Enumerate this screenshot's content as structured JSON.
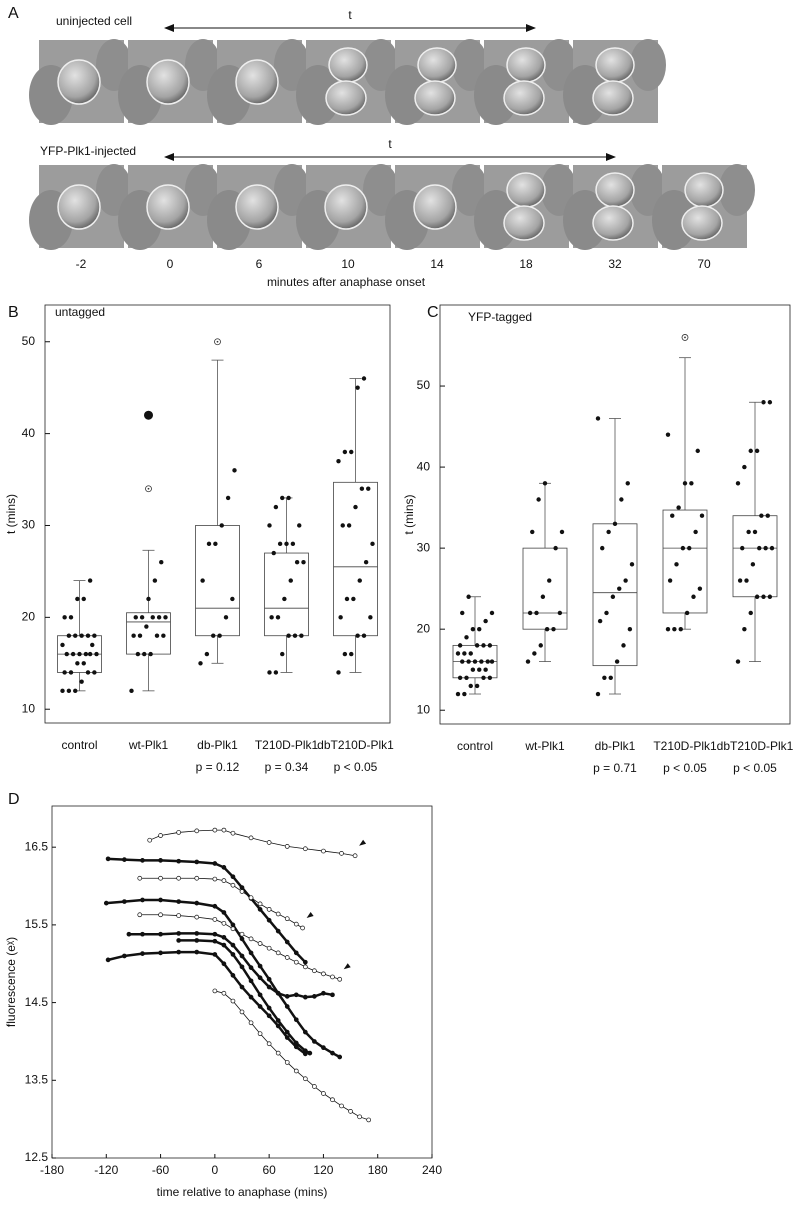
{
  "panel_a": {
    "label": "A",
    "rows": [
      {
        "label": "uninjected cell",
        "arrow_label": "t"
      },
      {
        "label": "YFP-Plk1-injected",
        "arrow_label": "t"
      }
    ],
    "time_labels": [
      -2,
      0,
      6,
      10,
      14,
      18,
      32,
      70
    ],
    "xlabel": "minutes after anaphase onset"
  },
  "chart_data": [
    {
      "type": "box",
      "panel_label": "B",
      "title": "untagged",
      "ylabel": "t (mins)",
      "categories": [
        "control",
        "wt-Plk1",
        "db-Plk1",
        "T210D-Plk1",
        "dbT210D-Plk1"
      ],
      "annotations": [
        null,
        null,
        "p = 0.12",
        "p = 0.34",
        "p < 0.05"
      ],
      "boxes": [
        {
          "whisker_low": 12,
          "q1": 14,
          "median": 16,
          "q3": 18,
          "whisker_high": 24,
          "outliers": [],
          "points": [
            12,
            12,
            12,
            13,
            14,
            14,
            14,
            14,
            15,
            15,
            16,
            16,
            16,
            16,
            16,
            16,
            17,
            17,
            18,
            18,
            18,
            18,
            18,
            20,
            20,
            22,
            22,
            24
          ]
        },
        {
          "whisker_low": 12,
          "q1": 16,
          "median": 19.5,
          "q3": 20.5,
          "whisker_high": 27.3,
          "outliers": [
            {
              "value": 42,
              "marker": "large-filled"
            },
            {
              "value": 34,
              "marker": "open"
            }
          ],
          "points": [
            12,
            16,
            16,
            16,
            18,
            18,
            18,
            18,
            19,
            20,
            20,
            20,
            20,
            20,
            22,
            24,
            26
          ]
        },
        {
          "whisker_low": 15,
          "q1": 18,
          "median": 21,
          "q3": 30,
          "whisker_high": 48,
          "outliers": [
            {
              "value": 50,
              "marker": "open"
            }
          ],
          "points": [
            15,
            16,
            18,
            18,
            20,
            22,
            24,
            28,
            28,
            30,
            33,
            36
          ]
        },
        {
          "whisker_low": 14,
          "q1": 18,
          "median": 21,
          "q3": 27,
          "whisker_high": 33,
          "outliers": [],
          "points": [
            14,
            14,
            16,
            18,
            18,
            18,
            20,
            20,
            22,
            24,
            26,
            26,
            27,
            28,
            28,
            28,
            30,
            30,
            32,
            33,
            33
          ]
        },
        {
          "whisker_low": 14,
          "q1": 18,
          "median": 25.5,
          "q3": 34.7,
          "whisker_high": 46,
          "outliers": [],
          "points": [
            14,
            16,
            16,
            18,
            18,
            20,
            20,
            22,
            22,
            24,
            26,
            28,
            30,
            30,
            32,
            34,
            34,
            37,
            38,
            38,
            45,
            46
          ]
        }
      ],
      "ylim": [
        8.5,
        54
      ],
      "yticks": [
        10,
        20,
        30,
        40,
        50
      ]
    },
    {
      "type": "box",
      "panel_label": "C",
      "title": "YFP-tagged",
      "ylabel": "t (mins)",
      "categories": [
        "control",
        "wt-Plk1",
        "db-Plk1",
        "T210D-Plk1",
        "dbT210D-Plk1"
      ],
      "annotations": [
        null,
        null,
        "p = 0.71",
        "p < 0.05",
        "p < 0.05"
      ],
      "boxes": [
        {
          "whisker_low": 12,
          "q1": 14,
          "median": 16,
          "q3": 18,
          "whisker_high": 24,
          "outliers": [],
          "points": [
            12,
            12,
            13,
            13,
            14,
            14,
            14,
            14,
            15,
            15,
            15,
            16,
            16,
            16,
            16,
            16,
            16,
            17,
            17,
            17,
            18,
            18,
            18,
            18,
            19,
            20,
            20,
            21,
            22,
            22,
            24
          ]
        },
        {
          "whisker_low": 16,
          "q1": 20,
          "median": 22,
          "q3": 30,
          "whisker_high": 38,
          "outliers": [],
          "points": [
            16,
            17,
            18,
            20,
            20,
            22,
            22,
            22,
            24,
            26,
            30,
            32,
            32,
            36,
            38
          ]
        },
        {
          "whisker_low": 12,
          "q1": 15.5,
          "median": 24.5,
          "q3": 33,
          "whisker_high": 46,
          "outliers": [],
          "points": [
            12,
            14,
            14,
            16,
            18,
            20,
            21,
            22,
            24,
            25,
            26,
            28,
            30,
            32,
            33,
            36,
            38,
            46
          ]
        },
        {
          "whisker_low": 20,
          "q1": 22,
          "median": 30,
          "q3": 34.7,
          "whisker_high": 53.5,
          "outliers": [
            {
              "value": 56,
              "marker": "open"
            }
          ],
          "points": [
            20,
            20,
            20,
            22,
            24,
            25,
            26,
            28,
            30,
            30,
            32,
            34,
            34,
            35,
            38,
            38,
            42,
            44
          ]
        },
        {
          "whisker_low": 16,
          "q1": 24,
          "median": 30,
          "q3": 34,
          "whisker_high": 48,
          "outliers": [],
          "points": [
            16,
            20,
            22,
            24,
            24,
            24,
            26,
            26,
            28,
            30,
            30,
            30,
            30,
            32,
            32,
            34,
            34,
            38,
            40,
            42,
            42,
            48,
            48
          ]
        }
      ],
      "ylim": [
        8.3,
        60
      ],
      "yticks": [
        10,
        20,
        30,
        40,
        50
      ]
    },
    {
      "type": "line",
      "panel_label": "D",
      "xlabel": "time relative to anaphase (mins)",
      "ylabel": "fluorescence (eᵡ)",
      "xlim": [
        -180,
        240
      ],
      "xticks": [
        -180,
        -120,
        -60,
        0,
        60,
        120,
        180,
        240
      ],
      "ylim": [
        12.5,
        17.03
      ],
      "yticks": [
        12.5,
        13.5,
        14.5,
        15.5,
        16.5
      ],
      "series": [
        {
          "marker": "open",
          "arrowhead": true,
          "x": [
            -72,
            -60,
            -40,
            -20,
            0,
            10,
            20,
            40,
            60,
            80,
            100,
            120,
            140,
            155
          ],
          "values": [
            16.59,
            16.65,
            16.69,
            16.71,
            16.72,
            16.72,
            16.68,
            16.62,
            16.56,
            16.51,
            16.48,
            16.45,
            16.42,
            16.39
          ]
        },
        {
          "marker": "filled",
          "x": [
            -118,
            -100,
            -80,
            -60,
            -40,
            -20,
            0,
            10,
            20,
            30,
            40,
            50,
            60,
            70,
            80,
            90,
            100
          ],
          "values": [
            16.35,
            16.34,
            16.33,
            16.33,
            16.32,
            16.31,
            16.29,
            16.24,
            16.12,
            15.98,
            15.84,
            15.7,
            15.56,
            15.42,
            15.28,
            15.14,
            15.02
          ]
        },
        {
          "marker": "open",
          "arrowhead": true,
          "x": [
            -83,
            -60,
            -40,
            -20,
            0,
            10,
            20,
            30,
            40,
            50,
            60,
            70,
            80,
            90,
            97
          ],
          "values": [
            16.1,
            16.1,
            16.1,
            16.1,
            16.09,
            16.07,
            16.01,
            15.93,
            15.85,
            15.77,
            15.7,
            15.64,
            15.58,
            15.51,
            15.46
          ]
        },
        {
          "marker": "filled",
          "x": [
            -120,
            -100,
            -80,
            -60,
            -40,
            -20,
            0,
            10,
            20,
            30,
            40,
            50,
            60,
            70,
            80,
            90,
            100,
            110,
            120,
            130,
            138
          ],
          "values": [
            15.78,
            15.8,
            15.82,
            15.82,
            15.8,
            15.78,
            15.74,
            15.66,
            15.5,
            15.32,
            15.14,
            14.97,
            14.8,
            14.62,
            14.45,
            14.28,
            14.12,
            14.0,
            13.92,
            13.85,
            13.8
          ]
        },
        {
          "marker": "open",
          "arrowhead": true,
          "x": [
            -83,
            -60,
            -40,
            -20,
            0,
            10,
            20,
            30,
            40,
            50,
            60,
            70,
            80,
            90,
            100,
            110,
            120,
            130,
            138
          ],
          "values": [
            15.63,
            15.63,
            15.62,
            15.6,
            15.57,
            15.52,
            15.45,
            15.38,
            15.32,
            15.26,
            15.2,
            15.14,
            15.08,
            15.02,
            14.96,
            14.91,
            14.87,
            14.83,
            14.8
          ]
        },
        {
          "marker": "filled",
          "x": [
            -95,
            -80,
            -60,
            -40,
            -20,
            0,
            10,
            20,
            30,
            40,
            50,
            60,
            70,
            80,
            90,
            100,
            110,
            120,
            130
          ],
          "values": [
            15.38,
            15.38,
            15.38,
            15.39,
            15.39,
            15.38,
            15.34,
            15.24,
            15.1,
            14.95,
            14.82,
            14.7,
            14.62,
            14.58,
            14.6,
            14.57,
            14.58,
            14.62,
            14.6
          ]
        },
        {
          "marker": "filled",
          "x": [
            -40,
            -20,
            0,
            10,
            20,
            30,
            40,
            50,
            60,
            70,
            80,
            90,
            100,
            105
          ],
          "values": [
            15.3,
            15.3,
            15.29,
            15.24,
            15.12,
            14.96,
            14.78,
            14.6,
            14.43,
            14.27,
            14.12,
            13.98,
            13.88,
            13.85
          ]
        },
        {
          "marker": "filled",
          "x": [
            -118,
            -100,
            -80,
            -60,
            -40,
            -20,
            0,
            10,
            20,
            30,
            40,
            50,
            60,
            70,
            80,
            90,
            100
          ],
          "values": [
            15.05,
            15.1,
            15.13,
            15.14,
            15.15,
            15.15,
            15.12,
            15.0,
            14.85,
            14.7,
            14.57,
            14.45,
            14.33,
            14.2,
            14.05,
            13.93,
            13.84
          ]
        },
        {
          "marker": "open",
          "x": [
            0,
            10,
            20,
            30,
            40,
            50,
            60,
            70,
            80,
            90,
            100,
            110,
            120,
            130,
            140,
            150,
            160,
            170
          ],
          "values": [
            14.65,
            14.62,
            14.52,
            14.38,
            14.24,
            14.1,
            13.97,
            13.85,
            13.73,
            13.62,
            13.52,
            13.42,
            13.33,
            13.25,
            13.17,
            13.1,
            13.03,
            12.99
          ]
        }
      ]
    }
  ]
}
